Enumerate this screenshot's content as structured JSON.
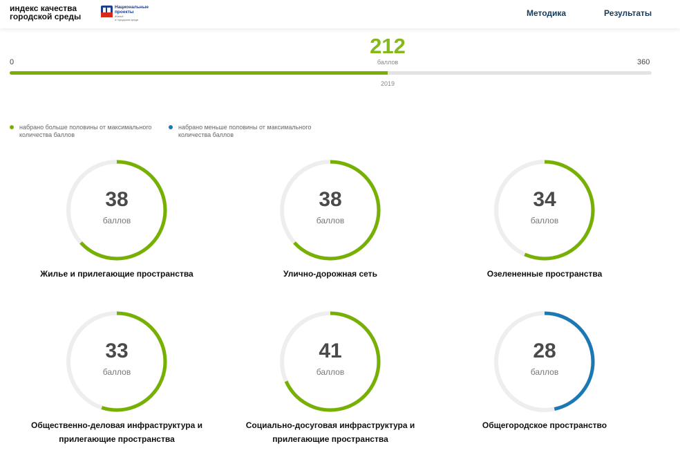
{
  "header": {
    "site_title_line1": "индекс качества",
    "site_title_line2": "городской среды",
    "logo_title_line1": "Национальные",
    "logo_title_line2": "проекты",
    "logo_subtitle_line1": "Жильё",
    "logo_subtitle_line2": "и городская среда",
    "nav": [
      {
        "label": "Методика"
      },
      {
        "label": "Результаты"
      }
    ]
  },
  "total": {
    "value": "212",
    "unit": "баллов",
    "min": "0",
    "max": "360",
    "year": "2019",
    "fill_fraction": 0.5889
  },
  "legend": [
    {
      "text": "набрано больше половины от максимального количества баллов",
      "color": "#76b000"
    },
    {
      "text": "набрано меньше половины от максимального количества баллов",
      "color": "#1a79b5"
    }
  ],
  "colors": {
    "green": "#76b000",
    "blue": "#1a79b5",
    "track": "#eeeeee"
  },
  "categories": [
    {
      "value": "38",
      "unit": "баллов",
      "label_line1": "Жилье и прилегающие пространства",
      "label_line2": "",
      "fraction": 0.633,
      "color": "green"
    },
    {
      "value": "38",
      "unit": "баллов",
      "label_line1": "Улично-дорожная сеть",
      "label_line2": "",
      "fraction": 0.633,
      "color": "green"
    },
    {
      "value": "34",
      "unit": "баллов",
      "label_line1": "Озелененные пространства",
      "label_line2": "",
      "fraction": 0.567,
      "color": "green"
    },
    {
      "value": "33",
      "unit": "баллов",
      "label_line1": "Общественно-деловая инфраструктура и",
      "label_line2": "прилегающие пространства",
      "fraction": 0.55,
      "color": "green"
    },
    {
      "value": "41",
      "unit": "баллов",
      "label_line1": "Социально-досуговая инфраструктура и",
      "label_line2": "прилегающие пространства",
      "fraction": 0.683,
      "color": "green"
    },
    {
      "value": "28",
      "unit": "баллов",
      "label_line1": "Общегородское пространство",
      "label_line2": "",
      "fraction": 0.467,
      "color": "blue"
    }
  ]
}
